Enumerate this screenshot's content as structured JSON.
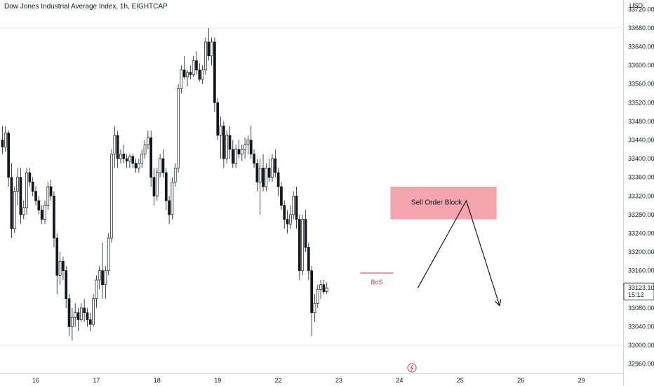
{
  "header": {
    "title": "Dow Jones Industrial Average Index, 1h, EIGHTCAP"
  },
  "chart_data": {
    "type": "candlestick",
    "currency": "USD",
    "ylim": [
      32940,
      33740
    ],
    "yticks": [
      32960,
      33000,
      33040,
      33080,
      33120,
      33160,
      33200,
      33240,
      33280,
      33320,
      33360,
      33400,
      33440,
      33480,
      33520,
      33560,
      33600,
      33640,
      33680,
      33720
    ],
    "ytick_labels": [
      "32960.00",
      "33000.00",
      "33040.00",
      "33080.00",
      "33120.00",
      "33160.00",
      "33200.00",
      "33240.00",
      "33280.00",
      "33320.00",
      "33360.00",
      "33400.00",
      "33440.00",
      "33480.00",
      "33520.00",
      "33560.00",
      "33600.00",
      "33640.00",
      "33680.00",
      "33720.00"
    ],
    "xticks": [
      {
        "label": "16",
        "bar": 11
      },
      {
        "label": "17",
        "bar": 31
      },
      {
        "label": "18",
        "bar": 51
      },
      {
        "label": "19",
        "bar": 71
      },
      {
        "label": "22",
        "bar": 91
      },
      {
        "label": "23",
        "bar": 111
      },
      {
        "label": "24",
        "bar": 131
      },
      {
        "label": "25",
        "bar": 151
      },
      {
        "label": "26",
        "bar": 171
      },
      {
        "label": "29",
        "bar": 191
      }
    ],
    "horizontal_levels": [
      33680,
      33000
    ],
    "last_price": {
      "value": "33123.10",
      "countdown": "15:12"
    },
    "candles": [
      [
        33440,
        33470,
        33410,
        33425
      ],
      [
        33425,
        33470,
        33415,
        33455
      ],
      [
        33455,
        33460,
        33340,
        33360
      ],
      [
        33360,
        33390,
        33230,
        33250
      ],
      [
        33250,
        33340,
        33240,
        33330
      ],
      [
        33330,
        33380,
        33300,
        33360
      ],
      [
        33360,
        33380,
        33260,
        33280
      ],
      [
        33280,
        33310,
        33270,
        33295
      ],
      [
        33295,
        33380,
        33280,
        33370
      ],
      [
        33370,
        33380,
        33340,
        33350
      ],
      [
        33350,
        33360,
        33320,
        33330
      ],
      [
        33330,
        33340,
        33300,
        33310
      ],
      [
        33310,
        33320,
        33280,
        33290
      ],
      [
        33290,
        33300,
        33260,
        33270
      ],
      [
        33270,
        33310,
        33260,
        33300
      ],
      [
        33300,
        33350,
        33290,
        33340
      ],
      [
        33340,
        33355,
        33310,
        33320
      ],
      [
        33320,
        33330,
        33210,
        33230
      ],
      [
        33230,
        33240,
        33110,
        33150
      ],
      [
        33150,
        33200,
        33130,
        33180
      ],
      [
        33180,
        33190,
        33140,
        33160
      ],
      [
        33160,
        33170,
        33080,
        33100
      ],
      [
        33100,
        33110,
        33020,
        33040
      ],
      [
        33040,
        33080,
        33010,
        33060
      ],
      [
        33060,
        33090,
        33040,
        33070
      ],
      [
        33070,
        33080,
        33030,
        33055
      ],
      [
        33055,
        33090,
        33050,
        33080
      ],
      [
        33080,
        33100,
        33050,
        33070
      ],
      [
        33070,
        33080,
        33040,
        33055
      ],
      [
        33055,
        33070,
        33030,
        33045
      ],
      [
        33045,
        33110,
        33040,
        33100
      ],
      [
        33100,
        33150,
        33080,
        33140
      ],
      [
        33140,
        33170,
        33120,
        33160
      ],
      [
        33160,
        33220,
        33100,
        33130
      ],
      [
        33130,
        33170,
        33100,
        33160
      ],
      [
        33160,
        33240,
        33150,
        33230
      ],
      [
        33230,
        33420,
        33220,
        33410
      ],
      [
        33410,
        33470,
        33380,
        33450
      ],
      [
        33450,
        33460,
        33380,
        33400
      ],
      [
        33400,
        33420,
        33390,
        33410
      ],
      [
        33410,
        33430,
        33390,
        33400
      ],
      [
        33400,
        33410,
        33380,
        33395
      ],
      [
        33395,
        33410,
        33380,
        33405
      ],
      [
        33405,
        33410,
        33380,
        33390
      ],
      [
        33390,
        33400,
        33370,
        33380
      ],
      [
        33380,
        33400,
        33370,
        33390
      ],
      [
        33390,
        33420,
        33380,
        33410
      ],
      [
        33410,
        33440,
        33400,
        33430
      ],
      [
        33430,
        33460,
        33420,
        33445
      ],
      [
        33445,
        33460,
        33340,
        33360
      ],
      [
        33360,
        33380,
        33300,
        33320
      ],
      [
        33320,
        33380,
        33310,
        33370
      ],
      [
        33370,
        33410,
        33360,
        33400
      ],
      [
        33400,
        33420,
        33360,
        33370
      ],
      [
        33370,
        33380,
        33290,
        33310
      ],
      [
        33310,
        33320,
        33260,
        33280
      ],
      [
        33280,
        33360,
        33270,
        33350
      ],
      [
        33350,
        33390,
        33340,
        33380
      ],
      [
        33380,
        33560,
        33370,
        33550
      ],
      [
        33550,
        33600,
        33540,
        33590
      ],
      [
        33590,
        33620,
        33570,
        33575
      ],
      [
        33575,
        33590,
        33555,
        33585
      ],
      [
        33585,
        33600,
        33570,
        33580
      ],
      [
        33580,
        33620,
        33575,
        33610
      ],
      [
        33610,
        33630,
        33580,
        33590
      ],
      [
        33590,
        33605,
        33565,
        33570
      ],
      [
        33570,
        33600,
        33560,
        33590
      ],
      [
        33590,
        33660,
        33580,
        33650
      ],
      [
        33650,
        33680,
        33610,
        33620
      ],
      [
        33620,
        33660,
        33600,
        33650
      ],
      [
        33650,
        33660,
        33500,
        33520
      ],
      [
        33520,
        33530,
        33440,
        33450
      ],
      [
        33450,
        33490,
        33400,
        33470
      ],
      [
        33470,
        33480,
        33380,
        33400
      ],
      [
        33400,
        33460,
        33390,
        33450
      ],
      [
        33450,
        33470,
        33400,
        33420
      ],
      [
        33420,
        33440,
        33380,
        33390
      ],
      [
        33390,
        33430,
        33380,
        33420
      ],
      [
        33420,
        33440,
        33400,
        33410
      ],
      [
        33410,
        33430,
        33395,
        33420
      ],
      [
        33420,
        33445,
        33400,
        33430
      ],
      [
        33430,
        33450,
        33410,
        33440
      ],
      [
        33440,
        33470,
        33400,
        33410
      ],
      [
        33410,
        33420,
        33380,
        33390
      ],
      [
        33390,
        33400,
        33330,
        33350
      ],
      [
        33350,
        33400,
        33280,
        33380
      ],
      [
        33380,
        33410,
        33330,
        33340
      ],
      [
        33340,
        33390,
        33330,
        33380
      ],
      [
        33380,
        33400,
        33350,
        33360
      ],
      [
        33360,
        33410,
        33350,
        33400
      ],
      [
        33400,
        33420,
        33360,
        33370
      ],
      [
        33370,
        33380,
        33320,
        33340
      ],
      [
        33340,
        33350,
        33290,
        33300
      ],
      [
        33300,
        33310,
        33250,
        33270
      ],
      [
        33270,
        33290,
        33240,
        33260
      ],
      [
        33260,
        33300,
        33250,
        33280
      ],
      [
        33280,
        33330,
        33270,
        33320
      ],
      [
        33320,
        33340,
        33250,
        33270
      ],
      [
        33270,
        33280,
        33140,
        33160
      ],
      [
        33160,
        33280,
        33150,
        33270
      ],
      [
        33270,
        33290,
        33200,
        33210
      ],
      [
        33210,
        33220,
        33140,
        33160
      ],
      [
        33160,
        33170,
        33020,
        33070
      ],
      [
        33070,
        33110,
        33050,
        33090
      ],
      [
        33090,
        33130,
        33080,
        33120
      ],
      [
        33120,
        33140,
        33100,
        33130
      ],
      [
        33130,
        33140,
        33110,
        33115
      ],
      [
        33115,
        33135,
        33110,
        33123
      ]
    ]
  },
  "annotations": {
    "sell_order_block_label": "Sell Order Block",
    "bos_label": "BoS",
    "sell_zone": {
      "x1_bar": 128,
      "x2_bar": 163,
      "y_top": 33340,
      "y_bottom": 33270
    },
    "bos_line": {
      "x1_bar": 118,
      "x2_bar": 129,
      "y": 33155
    },
    "projection_path": [
      [
        137,
        33123
      ],
      [
        153,
        33310
      ],
      [
        164,
        33085
      ]
    ]
  },
  "colors": {
    "candle_up": "#ffffff",
    "candle_down": "#131722",
    "sell_zone_fill": "#f4a4ad",
    "bos": "#e0364c",
    "grid_line": "#e0e3eb",
    "price_label": "#131722"
  },
  "icons": {
    "bottom": "lightning-icon"
  }
}
